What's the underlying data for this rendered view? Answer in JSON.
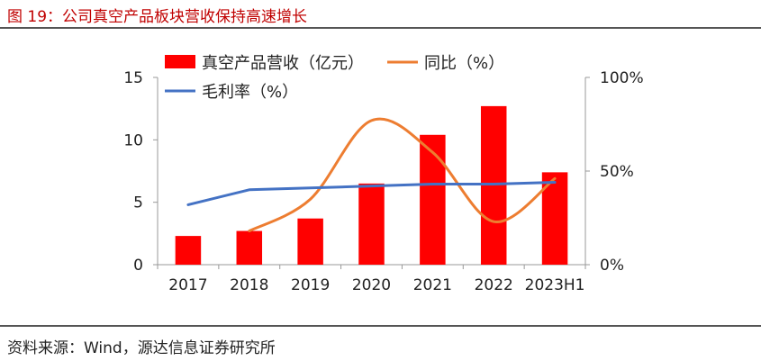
{
  "title": "图 19：公司真空产品板块营收保持高速增长",
  "source": "资料来源：Wind，源达信息证券研究所",
  "chart_data": {
    "type": "bar",
    "categories": [
      "2017",
      "2018",
      "2019",
      "2020",
      "2021",
      "2022",
      "2023H1"
    ],
    "series": [
      {
        "name": "真空产品营收（亿元）",
        "type": "bar",
        "axis": "left",
        "color": "#ff0000",
        "values": [
          2.3,
          2.7,
          3.7,
          6.5,
          10.4,
          12.7,
          7.4
        ]
      },
      {
        "name": "同比（%）",
        "type": "line",
        "axis": "right",
        "color": "#ed7d31",
        "smooth": true,
        "values": [
          null,
          18,
          35,
          77,
          60,
          23,
          46
        ]
      },
      {
        "name": "毛利率（%）",
        "type": "line",
        "axis": "right",
        "color": "#4472c4",
        "smooth": false,
        "values": [
          32,
          40,
          41,
          42,
          43,
          43,
          44
        ]
      }
    ],
    "y_left": {
      "ylim": [
        0,
        15
      ],
      "ticks": [
        0,
        5,
        10,
        15
      ],
      "tick_labels": [
        "0",
        "5",
        "10",
        "15"
      ]
    },
    "y_right": {
      "ylim": [
        0,
        100
      ],
      "ticks": [
        0,
        50,
        100
      ],
      "tick_labels": [
        "0%",
        "50%",
        "100%"
      ]
    },
    "grid": false,
    "legend_position": "top-left"
  }
}
